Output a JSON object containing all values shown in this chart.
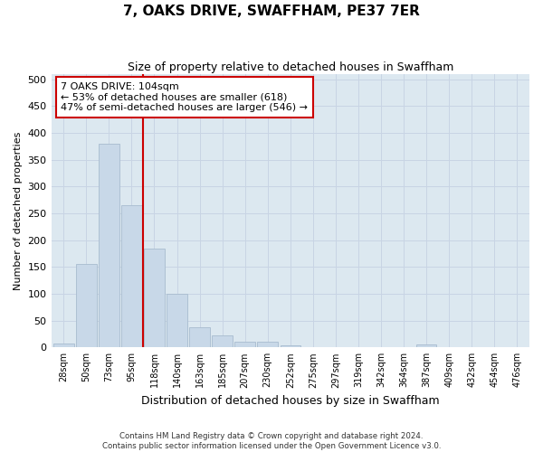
{
  "title": "7, OAKS DRIVE, SWAFFHAM, PE37 7ER",
  "subtitle": "Size of property relative to detached houses in Swaffham",
  "xlabel": "Distribution of detached houses by size in Swaffham",
  "ylabel": "Number of detached properties",
  "bar_labels": [
    "28sqm",
    "50sqm",
    "73sqm",
    "95sqm",
    "118sqm",
    "140sqm",
    "163sqm",
    "185sqm",
    "207sqm",
    "230sqm",
    "252sqm",
    "275sqm",
    "297sqm",
    "319sqm",
    "342sqm",
    "364sqm",
    "387sqm",
    "409sqm",
    "432sqm",
    "454sqm",
    "476sqm"
  ],
  "bar_values": [
    7,
    155,
    380,
    265,
    185,
    100,
    37,
    22,
    11,
    10,
    4,
    0,
    0,
    0,
    0,
    0,
    5,
    0,
    0,
    0,
    0
  ],
  "bar_color": "#c8d8e8",
  "bar_edge_color": "#a8bccf",
  "property_line_x": 3.5,
  "annotation_line1": "7 OAKS DRIVE: 104sqm",
  "annotation_line2": "← 53% of detached houses are smaller (618)",
  "annotation_line3": "47% of semi-detached houses are larger (546) →",
  "annotation_box_color": "#ffffff",
  "annotation_box_edge_color": "#cc0000",
  "red_line_color": "#cc0000",
  "grid_color": "#c8d4e4",
  "background_color": "#dce8f0",
  "ylim": [
    0,
    510
  ],
  "yticks": [
    0,
    50,
    100,
    150,
    200,
    250,
    300,
    350,
    400,
    450,
    500
  ],
  "footer_line1": "Contains HM Land Registry data © Crown copyright and database right 2024.",
  "footer_line2": "Contains public sector information licensed under the Open Government Licence v3.0."
}
